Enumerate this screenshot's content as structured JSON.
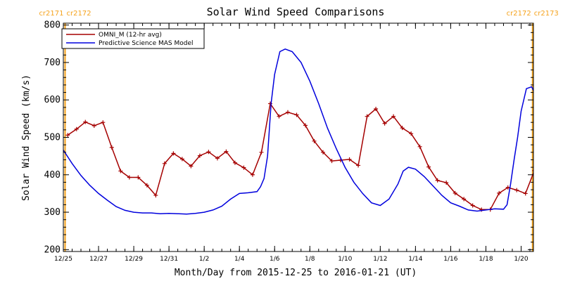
{
  "chart_data": {
    "type": "line",
    "title": "Solar Wind Speed Comparisons",
    "xlabel": "Month/Day from 2015-12-25 to 2016-01-21 (UT)",
    "ylabel": "Solar Wind Speed (km/s)",
    "xlim": [
      0,
      26.7
    ],
    "ylim": [
      195,
      805
    ],
    "yticks": [
      200,
      300,
      400,
      500,
      600,
      700,
      800
    ],
    "xticks": [
      {
        "x": 0,
        "label": "12/25"
      },
      {
        "x": 2,
        "label": "12/27"
      },
      {
        "x": 4,
        "label": "12/29"
      },
      {
        "x": 6,
        "label": "12/31"
      },
      {
        "x": 8,
        "label": "1/2"
      },
      {
        "x": 10,
        "label": "1/4"
      },
      {
        "x": 12,
        "label": "1/6"
      },
      {
        "x": 14,
        "label": "1/8"
      },
      {
        "x": 16,
        "label": "1/10"
      },
      {
        "x": 18,
        "label": "1/12"
      },
      {
        "x": 20,
        "label": "1/14"
      },
      {
        "x": 22,
        "label": "1/16"
      },
      {
        "x": 24,
        "label": "1/18"
      },
      {
        "x": 26,
        "label": "1/20"
      }
    ],
    "minor_ticks_per_day": 2,
    "legend_position": "top-left",
    "carrington_markers": [
      {
        "x": 0.1,
        "left": "cr2171",
        "right": "cr2172",
        "color": "#f5a21b"
      },
      {
        "x": 26.65,
        "left": "cr2172",
        "right": "cr2173",
        "color": "#f5a21b"
      }
    ],
    "series": [
      {
        "name": "OMNI_M (12-hr avg)",
        "color": "#a50000",
        "marker": "plus",
        "x": [
          0.25,
          0.75,
          1.25,
          1.75,
          2.25,
          2.75,
          3.25,
          3.75,
          4.25,
          4.75,
          5.25,
          5.75,
          6.25,
          6.75,
          7.25,
          7.75,
          8.25,
          8.75,
          9.25,
          9.75,
          10.25,
          10.75,
          11.25,
          11.75,
          12.25,
          12.75,
          13.25,
          13.75,
          14.25,
          14.75,
          15.25,
          15.75,
          16.25,
          16.75,
          17.25,
          17.75,
          18.25,
          18.75,
          19.25,
          19.75,
          20.25,
          20.75,
          21.25,
          21.75,
          22.25,
          22.75,
          23.25,
          23.75,
          24.25,
          24.75,
          25.25,
          25.75,
          26.25,
          26.75,
          27.25,
          27.75
        ],
        "y": [
          506,
          522,
          541,
          531,
          540,
          473,
          410,
          393,
          393,
          372,
          345,
          430,
          457,
          442,
          423,
          451,
          461,
          444,
          462,
          432,
          419,
          400,
          460,
          590,
          556,
          567,
          560,
          532,
          490,
          460,
          437,
          439,
          441,
          425,
          556,
          576,
          537,
          556,
          525,
          510,
          475,
          421,
          385,
          379,
          351,
          335,
          318,
          307,
          307,
          351,
          366,
          359,
          350,
          411,
          499,
          null
        ]
      },
      {
        "name": "Predictive Science MAS Model",
        "color": "#0000dd",
        "marker": "none",
        "x": [
          0,
          0.5,
          1,
          1.5,
          2,
          2.5,
          3,
          3.5,
          4,
          4.5,
          5,
          5.5,
          6,
          6.5,
          7,
          7.5,
          8,
          8.5,
          9,
          9.5,
          10,
          10.5,
          11,
          11.2,
          11.4,
          11.6,
          11.8,
          12,
          12.3,
          12.6,
          13,
          13.5,
          14,
          14.5,
          15,
          15.5,
          16,
          16.5,
          17,
          17.5,
          18,
          18.5,
          19,
          19.3,
          19.6,
          20,
          20.5,
          21,
          21.5,
          22,
          22.5,
          23,
          23.5,
          24,
          24.5,
          25,
          25.2,
          25.4,
          25.6,
          25.8,
          26,
          26.3,
          26.6,
          26.9,
          27.2,
          27.5,
          27.8
        ],
        "y": [
          466,
          430,
          398,
          372,
          350,
          332,
          315,
          305,
          300,
          298,
          298,
          296,
          297,
          296,
          295,
          297,
          300,
          306,
          316,
          335,
          350,
          352,
          355,
          368,
          390,
          450,
          590,
          668,
          729,
          736,
          729,
          700,
          650,
          590,
          525,
          470,
          420,
          380,
          350,
          325,
          318,
          335,
          375,
          410,
          420,
          415,
          395,
          370,
          345,
          325,
          316,
          306,
          303,
          306,
          309,
          308,
          320,
          375,
          440,
          500,
          570,
          630,
          635,
          605,
          555,
          505,
          460
        ]
      }
    ]
  }
}
